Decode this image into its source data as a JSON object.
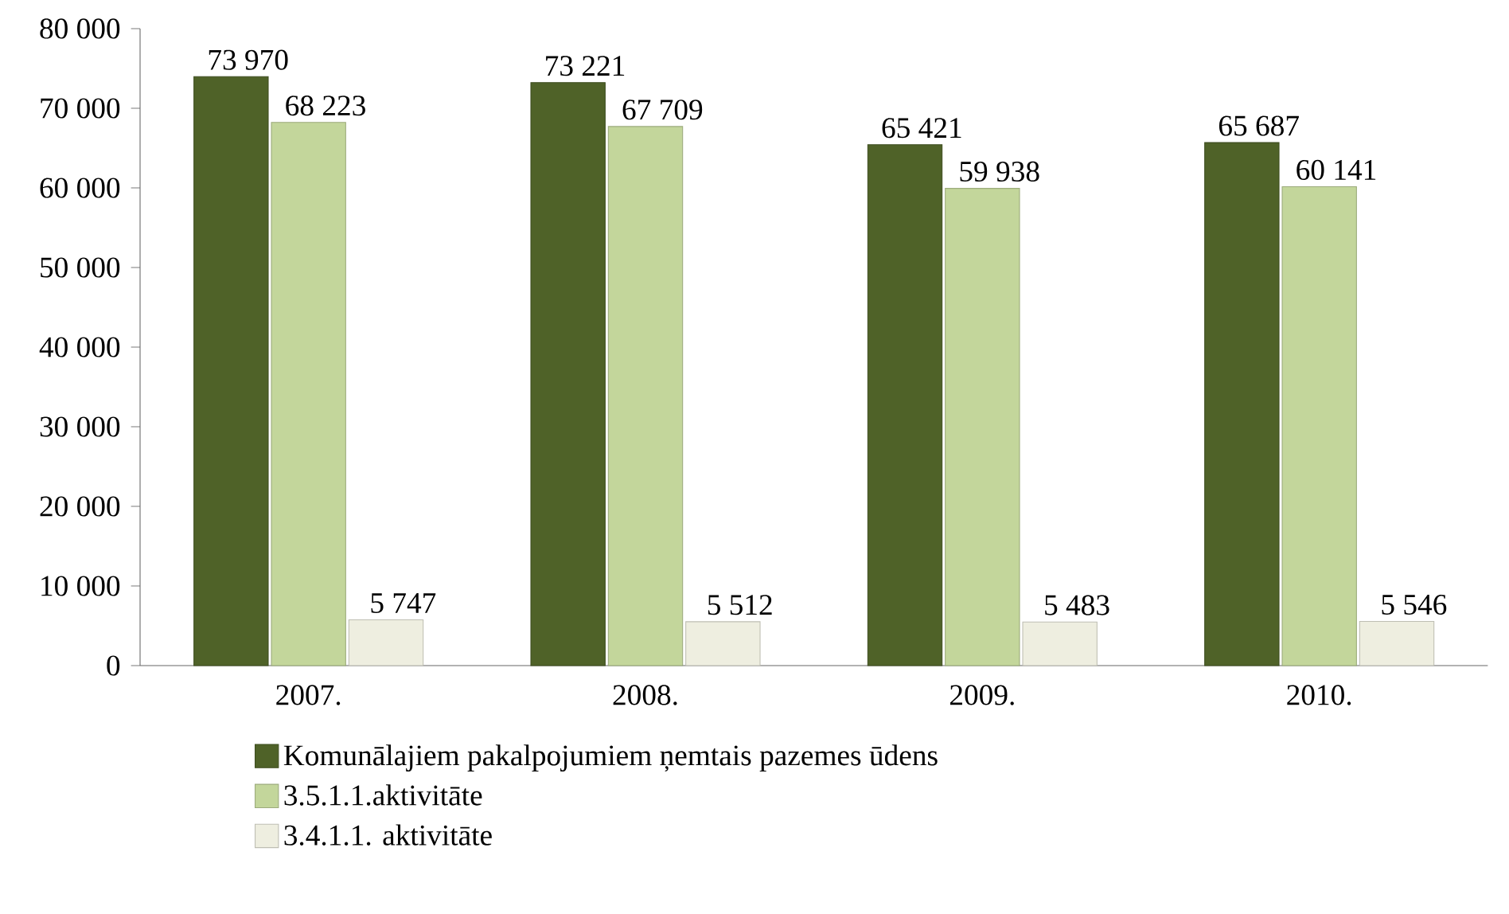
{
  "chart_data": {
    "type": "bar",
    "categories": [
      "2007.",
      "2008.",
      "2009.",
      "2010."
    ],
    "series": [
      {
        "name": "Komunālajiem pakalpojumiem ņemtais pazemes ūdens",
        "color": "#4f6228",
        "values": [
          73970,
          73221,
          65421,
          65687
        ],
        "value_labels": [
          "73 970",
          "73 221",
          "65 421",
          "65 687"
        ]
      },
      {
        "name": "3.5.1.1.aktivitāte",
        "color": "#c3d69b",
        "values": [
          68223,
          67709,
          59938,
          60141
        ],
        "value_labels": [
          "68 223",
          "67 709",
          "59 938",
          "60 141"
        ]
      },
      {
        "name": "3.4.1.1. aktivitāte",
        "color": "#eeeee0",
        "values": [
          5747,
          5512,
          5483,
          5546
        ],
        "value_labels": [
          "5 747",
          "5 512",
          "5 483",
          "5 546"
        ]
      }
    ],
    "ylim": [
      0,
      80000
    ],
    "yticks": [
      0,
      {
        "value": 10000,
        "label": "10 000"
      },
      {
        "value": 20000,
        "label": "20 000"
      },
      {
        "value": 30000,
        "label": "30 000"
      },
      {
        "value": 40000,
        "label": "40 000"
      },
      {
        "value": 50000,
        "label": "50 000"
      },
      {
        "value": 60000,
        "label": "60 000"
      },
      {
        "value": 70000,
        "label": "70 000"
      },
      {
        "value": 80000,
        "label": "80 000"
      }
    ],
    "grid": false,
    "legend": "bottom"
  }
}
